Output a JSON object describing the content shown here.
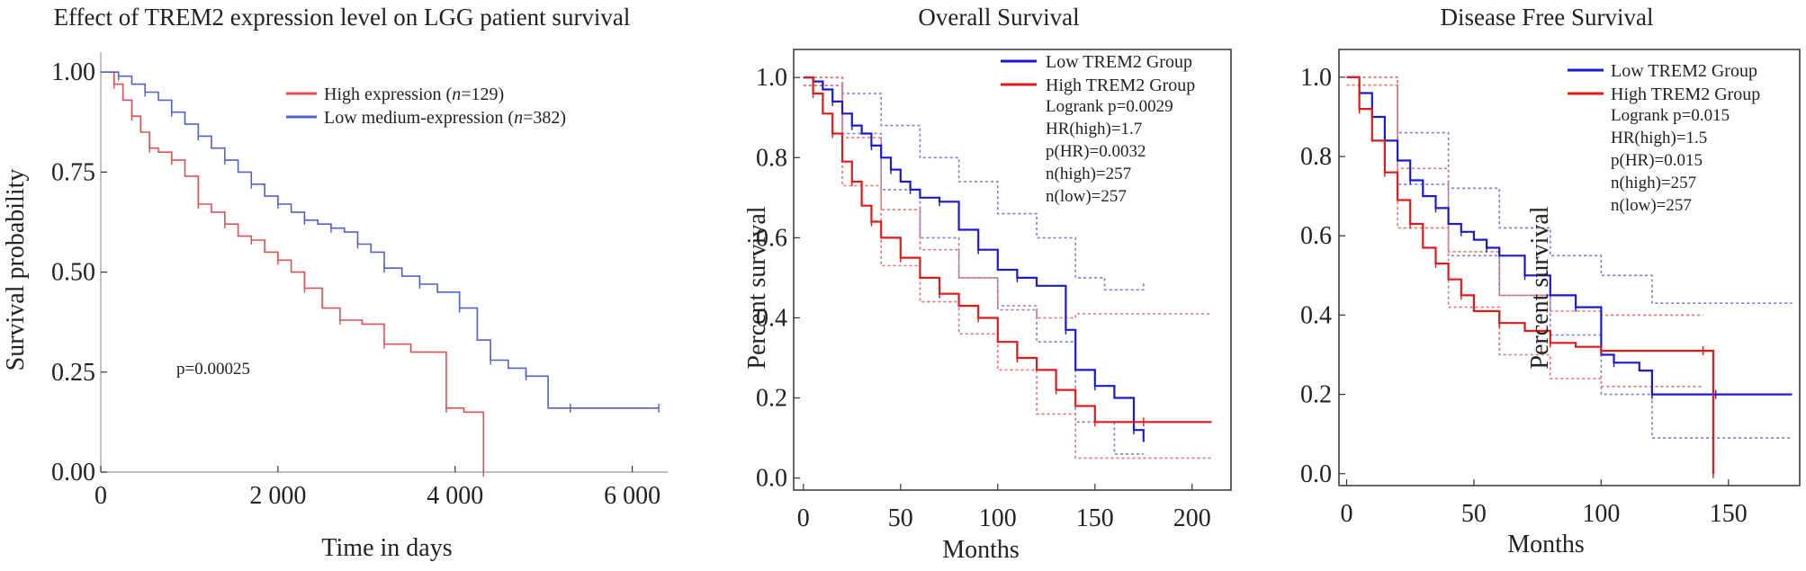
{
  "chart_data": [
    {
      "type": "line",
      "subtype": "kaplan-meier",
      "title": "Effect of TREM2 expression level on LGG patient survival",
      "xlabel": "Time in days",
      "ylabel": "Survival probability",
      "xlim": [
        0,
        6400
      ],
      "ylim": [
        0,
        1.05
      ],
      "xticks": [
        0,
        2000,
        4000,
        6000
      ],
      "xtick_labels": [
        "0",
        "2 000",
        "4 000",
        "6 000"
      ],
      "yticks": [
        0,
        0.25,
        0.5,
        0.75,
        1.0
      ],
      "ytick_labels": [
        "0.00",
        "0.25",
        "0.50",
        "0.75",
        "1.00"
      ],
      "grid": false,
      "legend_position": "top-right",
      "annotation": "p=0.00025",
      "series": [
        {
          "name": "High expression",
          "name_prefix": "High expression (",
          "n_symbol": "n",
          "n_value": "=129)",
          "color": "#e05050",
          "x": [
            0,
            150,
            250,
            350,
            450,
            550,
            650,
            800,
            950,
            1100,
            1250,
            1400,
            1550,
            1700,
            1850,
            2000,
            2150,
            2300,
            2500,
            2700,
            2950,
            3200,
            3500,
            3900,
            4100,
            4320
          ],
          "y": [
            1.0,
            0.97,
            0.93,
            0.89,
            0.85,
            0.81,
            0.8,
            0.78,
            0.74,
            0.67,
            0.65,
            0.62,
            0.59,
            0.58,
            0.55,
            0.53,
            0.5,
            0.46,
            0.41,
            0.38,
            0.37,
            0.32,
            0.3,
            0.16,
            0.15,
            0.0
          ]
        },
        {
          "name": "Low medium-expression",
          "name_prefix": "Low medium-expression (",
          "n_symbol": "n",
          "n_value": "=382)",
          "color": "#5060d0",
          "x": [
            0,
            200,
            350,
            500,
            650,
            800,
            950,
            1100,
            1250,
            1400,
            1550,
            1700,
            1850,
            2000,
            2150,
            2300,
            2450,
            2600,
            2750,
            2900,
            3050,
            3200,
            3400,
            3600,
            3800,
            4050,
            4250,
            4400,
            4600,
            4800,
            5050,
            5300,
            5700,
            6300
          ],
          "y": [
            1.0,
            0.99,
            0.97,
            0.95,
            0.93,
            0.9,
            0.87,
            0.84,
            0.81,
            0.78,
            0.75,
            0.72,
            0.69,
            0.67,
            0.65,
            0.63,
            0.62,
            0.61,
            0.6,
            0.57,
            0.55,
            0.51,
            0.49,
            0.47,
            0.45,
            0.41,
            0.33,
            0.28,
            0.26,
            0.24,
            0.16,
            0.16,
            0.16,
            0.16
          ]
        }
      ]
    },
    {
      "type": "line",
      "subtype": "kaplan-meier",
      "title": "Overall Survival",
      "xlabel": "Months",
      "ylabel": "Percent survival",
      "xlim": [
        -5,
        220
      ],
      "ylim": [
        -0.03,
        1.07
      ],
      "xticks": [
        0,
        50,
        100,
        150,
        200
      ],
      "yticks": [
        0.0,
        0.2,
        0.4,
        0.6,
        0.8,
        1.0
      ],
      "ytick_labels": [
        "0.0",
        "0.2",
        "0.4",
        "0.6",
        "0.8",
        "1.0"
      ],
      "grid": false,
      "legend_position": "top-right",
      "stats": [
        "Logrank p=0.0029",
        "HR(high)=1.7",
        "p(HR)=0.0032",
        "n(high)=257",
        "n(low)=257"
      ],
      "series": [
        {
          "name": "Low TREM2 Group",
          "color": "#1a1ad0",
          "x": [
            0,
            5,
            10,
            15,
            20,
            25,
            30,
            35,
            40,
            45,
            50,
            55,
            60,
            70,
            80,
            90,
            100,
            110,
            120,
            135,
            140,
            150,
            160,
            170,
            175
          ],
          "y": [
            1.0,
            0.99,
            0.97,
            0.94,
            0.91,
            0.88,
            0.86,
            0.83,
            0.8,
            0.77,
            0.74,
            0.72,
            0.7,
            0.69,
            0.62,
            0.57,
            0.52,
            0.5,
            0.48,
            0.37,
            0.27,
            0.23,
            0.2,
            0.12,
            0.09
          ]
        },
        {
          "name": "High TREM2 Group",
          "color": "#e01a1a",
          "x": [
            0,
            5,
            10,
            15,
            20,
            25,
            30,
            35,
            40,
            50,
            60,
            70,
            80,
            90,
            100,
            110,
            120,
            130,
            140,
            150,
            160,
            175,
            210
          ],
          "y": [
            1.0,
            0.96,
            0.91,
            0.86,
            0.79,
            0.74,
            0.68,
            0.64,
            0.6,
            0.55,
            0.5,
            0.46,
            0.43,
            0.4,
            0.34,
            0.3,
            0.27,
            0.22,
            0.18,
            0.14,
            0.14,
            0.14,
            0.14
          ]
        }
      ],
      "confidence_bands": [
        {
          "series": "Low TREM2 Group",
          "color": "#7a7aee",
          "upper": {
            "x": [
              0,
              20,
              40,
              60,
              80,
              100,
              120,
              140,
              155,
              175
            ],
            "y": [
              1.0,
              0.96,
              0.88,
              0.8,
              0.74,
              0.66,
              0.6,
              0.5,
              0.47,
              0.49
            ]
          },
          "lower": {
            "x": [
              0,
              20,
              40,
              60,
              80,
              100,
              120,
              140,
              160,
              175
            ],
            "y": [
              0.98,
              0.86,
              0.72,
              0.6,
              0.5,
              0.42,
              0.34,
              0.14,
              0.06,
              0.06
            ]
          }
        },
        {
          "series": "High TREM2 Group",
          "color": "#ee7070",
          "upper": {
            "x": [
              0,
              20,
              40,
              60,
              80,
              100,
              120,
              140,
              160,
              210
            ],
            "y": [
              1.0,
              0.85,
              0.67,
              0.57,
              0.5,
              0.43,
              0.4,
              0.41,
              0.41,
              0.41
            ]
          },
          "lower": {
            "x": [
              0,
              20,
              40,
              60,
              80,
              100,
              120,
              140,
              160,
              210
            ],
            "y": [
              0.98,
              0.73,
              0.53,
              0.44,
              0.36,
              0.27,
              0.16,
              0.05,
              0.05,
              0.05
            ]
          }
        }
      ]
    },
    {
      "type": "line",
      "subtype": "kaplan-meier",
      "title": "Disease Free Survival",
      "xlabel": "Months",
      "ylabel": "Percent survival",
      "xlim": [
        -3,
        178
      ],
      "ylim": [
        -0.03,
        1.07
      ],
      "xticks": [
        0,
        50,
        100,
        150
      ],
      "yticks": [
        0.0,
        0.2,
        0.4,
        0.6,
        0.8,
        1.0
      ],
      "ytick_labels": [
        "0.0",
        "0.2",
        "0.4",
        "0.6",
        "0.8",
        "1.0"
      ],
      "grid": false,
      "legend_position": "top-right",
      "stats": [
        "Logrank p=0.015",
        "HR(high)=1.5",
        "p(HR)=0.015",
        "n(high)=257",
        "n(low)=257"
      ],
      "series": [
        {
          "name": "Low TREM2 Group",
          "color": "#1a1ad0",
          "x": [
            0,
            5,
            10,
            15,
            20,
            25,
            30,
            35,
            40,
            45,
            50,
            55,
            60,
            70,
            80,
            90,
            100,
            105,
            115,
            120,
            130,
            145,
            175
          ],
          "y": [
            1.0,
            0.96,
            0.9,
            0.84,
            0.79,
            0.74,
            0.7,
            0.67,
            0.63,
            0.61,
            0.59,
            0.57,
            0.55,
            0.5,
            0.45,
            0.42,
            0.3,
            0.28,
            0.26,
            0.2,
            0.2,
            0.2,
            0.2
          ]
        },
        {
          "name": "High TREM2 Group",
          "color": "#e01a1a",
          "x": [
            0,
            5,
            10,
            15,
            20,
            25,
            30,
            35,
            40,
            45,
            50,
            60,
            70,
            80,
            90,
            100,
            120,
            140,
            144,
            144.01
          ],
          "y": [
            1.0,
            0.92,
            0.84,
            0.76,
            0.69,
            0.63,
            0.57,
            0.53,
            0.49,
            0.45,
            0.41,
            0.38,
            0.36,
            0.33,
            0.32,
            0.31,
            0.31,
            0.31,
            0.31,
            0.0
          ]
        }
      ],
      "confidence_bands": [
        {
          "series": "Low TREM2 Group",
          "color": "#7a7aee",
          "upper": {
            "x": [
              0,
              20,
              40,
              60,
              80,
              100,
              120,
              175
            ],
            "y": [
              1.0,
              0.86,
              0.72,
              0.62,
              0.55,
              0.5,
              0.43,
              0.43
            ]
          },
          "lower": {
            "x": [
              0,
              20,
              40,
              60,
              80,
              100,
              120,
              175
            ],
            "y": [
              0.98,
              0.73,
              0.55,
              0.45,
              0.35,
              0.2,
              0.09,
              0.09
            ]
          }
        },
        {
          "series": "High TREM2 Group",
          "color": "#ee7070",
          "upper": {
            "x": [
              0,
              20,
              40,
              60,
              80,
              100,
              120,
              140
            ],
            "y": [
              1.0,
              0.77,
              0.56,
              0.45,
              0.41,
              0.4,
              0.4,
              0.4
            ]
          },
          "lower": {
            "x": [
              0,
              20,
              40,
              60,
              80,
              100,
              120,
              140
            ],
            "y": [
              0.98,
              0.62,
              0.42,
              0.3,
              0.24,
              0.22,
              0.22,
              0.22
            ]
          }
        }
      ]
    }
  ]
}
